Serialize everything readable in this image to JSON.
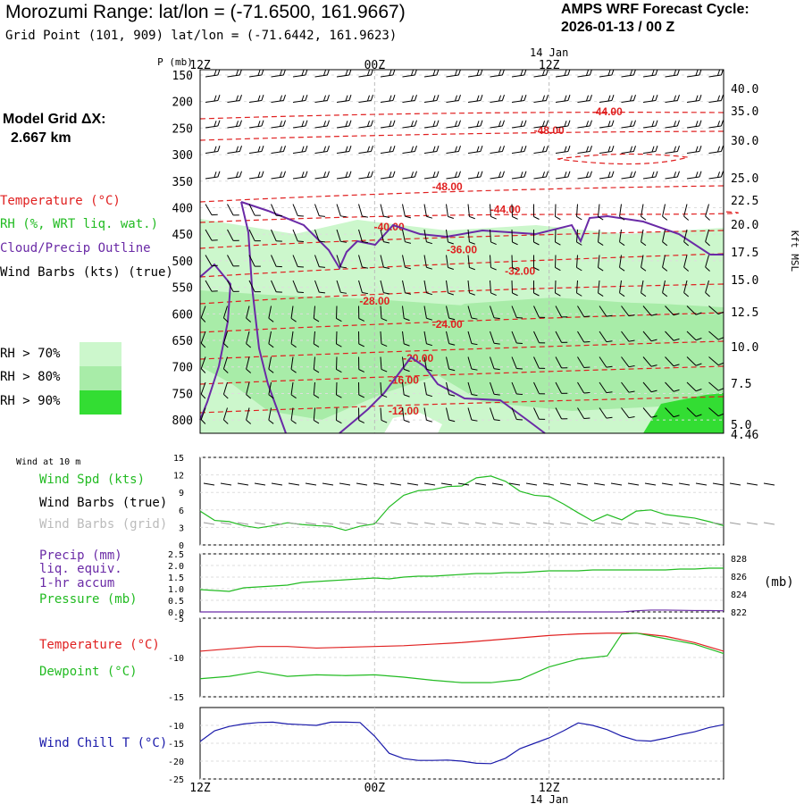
{
  "header": {
    "title": "Morozumi Range:  lat/lon = (-71.6500, 161.9667)",
    "subtitle": "Grid Point (101, 909) lat/lon = (-71.6442, 161.9623)",
    "cycle_line1": "AMPS WRF Forecast Cycle:",
    "cycle_line2": "2026-01-13 / 00  Z",
    "grid_line1": "Model Grid ΔX:",
    "grid_line2": "2.667 km"
  },
  "colors": {
    "temperature": "#e02020",
    "rh": "#22bb22",
    "cloud": "#6a2aa6",
    "wind_chill": "#1a1aaa",
    "rh70": "#ccf7cc",
    "rh80": "#a8eca8",
    "rh90": "#33dd33"
  },
  "legend": {
    "temperature": "Temperature (°C)",
    "rh": "RH (%, WRT liq. wat.)",
    "cloud": "Cloud/Precip Outline",
    "wind": "Wind Barbs (kts) (true)",
    "rh70": "RH > 70%",
    "rh80": "RH > 80%",
    "rh90": "RH > 90%"
  },
  "chart_data": [
    {
      "type": "heatmap",
      "name": "time-height cross section",
      "ylabel": "P (mb)",
      "ylabel_right": "Kft MSL",
      "top_time_ticks": [
        "12Z",
        "00Z",
        "12Z"
      ],
      "date_label": "14 Jan",
      "pressure_ticks": [
        150,
        200,
        250,
        300,
        350,
        400,
        450,
        500,
        550,
        600,
        650,
        700,
        750,
        800
      ],
      "height_ticks": [
        "40.0",
        "35.0",
        "30.0",
        "25.0",
        "22.5",
        "20.0",
        "17.5",
        "15.0",
        "12.5",
        "10.0",
        "7.5",
        "5.0",
        "4.46"
      ],
      "temperature_labels": [
        {
          "text": "-44.00",
          "time_h": 28,
          "p": 226
        },
        {
          "text": "-48.00",
          "time_h": 24,
          "p": 261
        },
        {
          "text": "-48.00",
          "time_h": 17,
          "p": 367
        },
        {
          "text": "-44.00",
          "time_h": 21,
          "p": 410
        },
        {
          "text": "-40.00",
          "time_h": 13,
          "p": 443
        },
        {
          "text": "-36.00",
          "time_h": 18,
          "p": 486
        },
        {
          "text": "-32.00",
          "time_h": 22,
          "p": 526
        },
        {
          "text": "-28.00",
          "time_h": 12,
          "p": 583
        },
        {
          "text": "-24.00",
          "time_h": 17,
          "p": 626
        },
        {
          "text": "-20.00",
          "time_h": 15,
          "p": 690
        },
        {
          "text": "-16.00",
          "time_h": 14,
          "p": 732
        },
        {
          "text": "-12.00",
          "time_h": 14,
          "p": 790
        }
      ]
    },
    {
      "type": "line",
      "name": "10 m wind",
      "panel_label": "Wind at 10 m",
      "labels": [
        "Wind Spd (kts)",
        "Wind Barbs (true)",
        "Wind Barbs (grid)"
      ],
      "y_ticks": [
        15,
        12,
        9,
        6,
        3,
        0
      ],
      "ylim": [
        0,
        15
      ],
      "series": [
        {
          "name": "Wind Spd (kts)",
          "x": [
            0,
            1,
            2,
            3,
            4,
            5,
            6,
            7,
            8,
            9,
            10,
            11,
            12,
            13,
            14,
            15,
            16,
            17,
            18,
            19,
            20,
            21,
            22,
            23,
            24,
            25,
            26,
            27,
            28,
            29,
            30,
            31,
            32,
            33,
            34,
            35,
            36
          ],
          "values": [
            5.8,
            4.2,
            4,
            3.3,
            2.9,
            3.3,
            3.8,
            3.5,
            3.3,
            3.2,
            2.5,
            3.2,
            3.6,
            6.5,
            8.5,
            9.3,
            9.5,
            10,
            10.1,
            11.5,
            11.8,
            10.9,
            9.2,
            8.5,
            8.3,
            7,
            5.5,
            4.1,
            5.2,
            4.3,
            5.8,
            6,
            5.2,
            4.9,
            4.6,
            4,
            3.3
          ]
        }
      ]
    },
    {
      "type": "line",
      "name": "precip and pressure",
      "labels": [
        "Precip (mm)",
        "liq. equiv.",
        "1-hr accum",
        "Pressure (mb)"
      ],
      "y_ticks": [
        "2.5",
        "2.0",
        "1.5",
        "1.0",
        "0.5",
        "0.0"
      ],
      "ylim": [
        0,
        2.5
      ],
      "y2_ticks": [
        828,
        826,
        824,
        822
      ],
      "y2lim": [
        822,
        828.5
      ],
      "y2_unit": "(mb)",
      "series": [
        {
          "name": "Pressure (mb)",
          "x": [
            0,
            1,
            2,
            3,
            4,
            5,
            6,
            7,
            8,
            9,
            10,
            11,
            12,
            13,
            14,
            15,
            16,
            17,
            18,
            19,
            20,
            21,
            22,
            23,
            24,
            25,
            26,
            27,
            28,
            29,
            30,
            31,
            32,
            33,
            34,
            35,
            36
          ],
          "values": [
            824.5,
            824.4,
            824.3,
            824.7,
            824.8,
            824.9,
            825,
            825.3,
            825.4,
            825.5,
            825.6,
            825.7,
            825.8,
            825.7,
            825.9,
            826,
            826,
            826.1,
            826.2,
            826.3,
            826.3,
            826.4,
            826.4,
            826.5,
            826.6,
            826.6,
            826.6,
            826.7,
            826.7,
            826.7,
            826.7,
            826.7,
            826.7,
            826.8,
            826.8,
            826.9,
            826.9
          ]
        },
        {
          "name": "Precip (mm)",
          "x": [
            0,
            29,
            30,
            31,
            32,
            33,
            34,
            35,
            36
          ],
          "values": [
            0,
            0,
            0.05,
            0.08,
            0.08,
            0.07,
            0.06,
            0.06,
            0.05
          ]
        }
      ]
    },
    {
      "type": "line",
      "name": "temperature and dewpoint",
      "labels": [
        "Temperature (°C)",
        "Dewpoint (°C)"
      ],
      "y_ticks": [
        -5,
        -10,
        -15
      ],
      "ylim": [
        -15,
        -5
      ],
      "series": [
        {
          "name": "Temperature (°C)",
          "x": [
            0,
            2,
            4,
            6,
            8,
            10,
            12,
            14,
            16,
            18,
            20,
            22,
            24,
            26,
            28,
            30,
            32,
            34,
            36
          ],
          "values": [
            -9.2,
            -8.9,
            -8.6,
            -8.6,
            -8.8,
            -8.7,
            -8.6,
            -8.5,
            -8.3,
            -8.1,
            -7.8,
            -7.5,
            -7.2,
            -7,
            -6.9,
            -6.9,
            -7.3,
            -8.1,
            -9.2
          ]
        },
        {
          "name": "Dewpoint (°C)",
          "x": [
            0,
            2,
            4,
            6,
            8,
            10,
            12,
            14,
            16,
            18,
            20,
            22,
            24,
            26,
            28,
            29,
            30,
            32,
            34,
            36
          ],
          "values": [
            -12.7,
            -12.4,
            -11.8,
            -12.4,
            -12.2,
            -12.3,
            -12.2,
            -12.5,
            -12.9,
            -13.2,
            -13.2,
            -12.8,
            -11.2,
            -10.2,
            -9.8,
            -7,
            -6.9,
            -7.6,
            -8.3,
            -9.5
          ]
        }
      ]
    },
    {
      "type": "line",
      "name": "wind chill",
      "labels": [
        "Wind Chill T (°C)"
      ],
      "y_ticks": [
        -10,
        -15,
        -20,
        -25
      ],
      "ylim": [
        -25,
        -5
      ],
      "bottom_time_ticks": [
        "12Z",
        "00Z",
        "12Z"
      ],
      "date_label": "14 Jan",
      "series": [
        {
          "name": "Wind Chill T (°C)",
          "x": [
            0,
            1,
            2,
            3,
            4,
            5,
            6,
            7,
            8,
            9,
            10,
            11,
            12,
            13,
            14,
            15,
            16,
            17,
            18,
            19,
            20,
            21,
            22,
            23,
            24,
            25,
            26,
            27,
            28,
            29,
            30,
            31,
            32,
            33,
            34,
            35,
            36
          ],
          "values": [
            -14.5,
            -11.5,
            -10.3,
            -9.6,
            -9.2,
            -9.1,
            -9.6,
            -9.8,
            -10,
            -9.1,
            -9.1,
            -9.2,
            -13,
            -17.8,
            -19.3,
            -19.8,
            -19.8,
            -19.7,
            -20,
            -20.6,
            -20.7,
            -19.2,
            -16.5,
            -15,
            -13.5,
            -11.5,
            -9.3,
            -10,
            -11.2,
            -13,
            -14.2,
            -14.4,
            -13.6,
            -12.6,
            -11.8,
            -10.6,
            -9.8
          ]
        }
      ]
    }
  ]
}
